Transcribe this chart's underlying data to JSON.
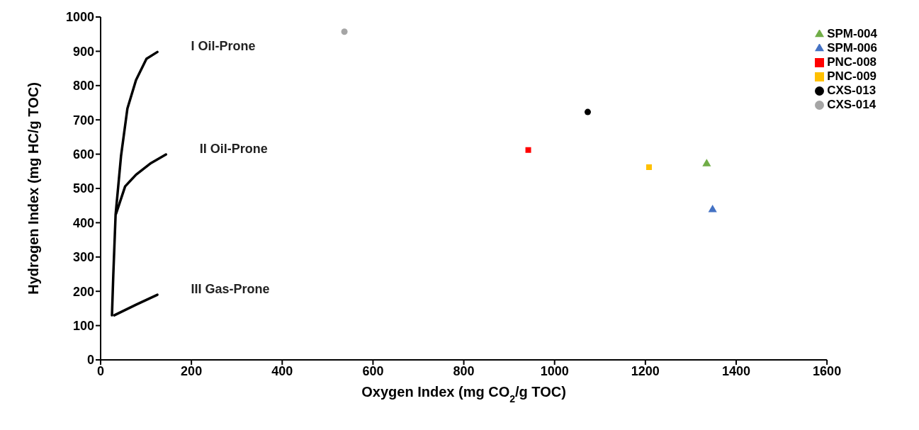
{
  "chart_data": {
    "type": "scatter",
    "xlabel": "Oxygen Index (mg CO$_{2}$/g TOC)",
    "ylabel": "Hydrogen Index (mg HC/g TOC)",
    "xlim": [
      0,
      1600
    ],
    "xticks": [
      0,
      200,
      400,
      600,
      800,
      1000,
      1200,
      1400,
      1600
    ],
    "ylim": [
      0,
      1000
    ],
    "yticks": [
      0,
      100,
      200,
      300,
      400,
      500,
      600,
      700,
      800,
      900,
      1000
    ],
    "grid": false,
    "legend": "top right",
    "series": [
      {
        "type": "line",
        "name": "I  Oil-Prone",
        "marker": "none",
        "color": "#000000",
        "x": [
          25,
          28,
          33,
          45,
          59,
          78,
          101,
          125
        ],
        "values": [
          130,
          250,
          423,
          595,
          733,
          816,
          878,
          898
        ]
      },
      {
        "type": "line",
        "name": "II Oil-Prone",
        "marker": "none",
        "color": "#000000",
        "x": [
          34,
          54,
          78,
          111,
          144
        ],
        "values": [
          426,
          506,
          540,
          574,
          599
        ]
      },
      {
        "type": "line",
        "name": "III Gas-Prone",
        "marker": "none",
        "color": "#000000",
        "x": [
          30,
          78,
          125
        ],
        "values": [
          130,
          161,
          190
        ]
      },
      {
        "name": "SPM-004",
        "marker": "triangle",
        "color": "#70ad47",
        "x": [
          1335
        ],
        "values": [
          572
        ]
      },
      {
        "name": "SPM-006",
        "marker": "triangle",
        "color": "#4472c4",
        "x": [
          1348
        ],
        "values": [
          438
        ]
      },
      {
        "name": "PNC-008",
        "marker": "square",
        "color": "#ff0000",
        "x": [
          942
        ],
        "values": [
          612
        ]
      },
      {
        "name": "PNC-009",
        "marker": "square",
        "color": "#ffc000",
        "x": [
          1208
        ],
        "values": [
          562
        ]
      },
      {
        "name": "CXS-013",
        "marker": "circle",
        "color": "#000000",
        "x": [
          1073
        ],
        "values": [
          723
        ]
      },
      {
        "name": "CXS-014",
        "marker": "circle",
        "color": "#a5a5a5",
        "x": [
          537
        ],
        "values": [
          957
        ]
      }
    ]
  }
}
